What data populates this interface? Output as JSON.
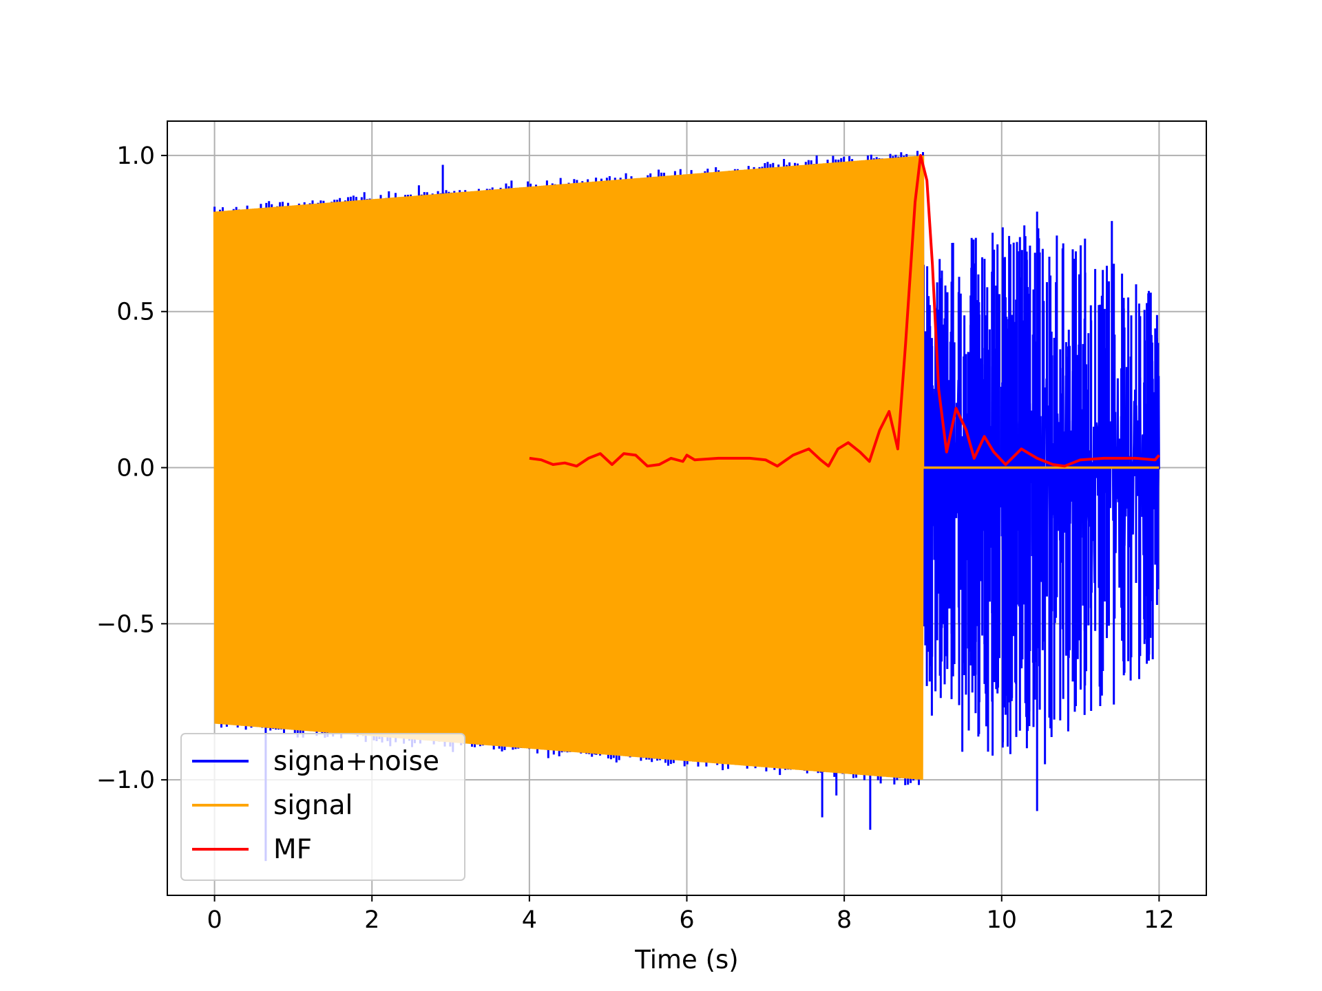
{
  "chart_data": {
    "type": "line",
    "title": "",
    "xlabel": "Time (s)",
    "ylabel": "",
    "xlim": [
      -0.6,
      12.6
    ],
    "ylim": [
      -1.37,
      1.11
    ],
    "x_ticks": [
      0,
      2,
      4,
      6,
      8,
      10,
      12
    ],
    "x_tick_labels": [
      "0",
      "2",
      "4",
      "6",
      "8",
      "10",
      "12"
    ],
    "y_ticks": [
      1.0,
      0.5,
      0.0,
      -0.5,
      -1.0
    ],
    "y_tick_labels": [
      "1.0",
      "0.5",
      "0.0",
      "−0.5",
      "−1.0"
    ],
    "grid": true,
    "legend_position": "lower-left",
    "series": [
      {
        "name": "signa+noise",
        "color": "#0000ff",
        "kind": "noisy-chirp",
        "signal_end": 9.0,
        "x_end": 12.0,
        "spike_points": [
          {
            "x": 0.65,
            "y": -1.26
          },
          {
            "x": 1.65,
            "y": 0.84
          },
          {
            "x": 2.3,
            "y": 0.88
          },
          {
            "x": 2.9,
            "y": 0.97
          },
          {
            "x": 4.85,
            "y": -0.92
          },
          {
            "x": 7.65,
            "y": 1.0
          },
          {
            "x": 7.72,
            "y": -1.12
          },
          {
            "x": 7.9,
            "y": -1.05
          },
          {
            "x": 8.3,
            "y": 1.0
          },
          {
            "x": 8.33,
            "y": -1.16
          },
          {
            "x": 9.5,
            "y": -0.91
          },
          {
            "x": 10.45,
            "y": 0.82
          },
          {
            "x": 10.45,
            "y": -1.1
          },
          {
            "x": 10.55,
            "y": -0.95
          },
          {
            "x": 11.4,
            "y": 0.79
          }
        ],
        "noise_envelope": [
          {
            "x": 9.0,
            "max": 0.72,
            "min": -0.78
          },
          {
            "x": 10.0,
            "max": 0.8,
            "min": -0.95
          },
          {
            "x": 11.0,
            "max": 0.75,
            "min": -0.85
          },
          {
            "x": 12.0,
            "max": 0.55,
            "min": -0.65
          }
        ]
      },
      {
        "name": "signal",
        "color": "#ffa500",
        "kind": "chirp",
        "envelope": [
          {
            "x": 0.0,
            "y": 0.82
          },
          {
            "x": 9.0,
            "y": 1.0
          }
        ],
        "signal_end": 9.0,
        "x_end": 12.0,
        "after_value": 0.0
      },
      {
        "name": "MF",
        "color": "#ff0000",
        "kind": "line",
        "points": [
          [
            4.0,
            0.03
          ],
          [
            4.15,
            0.025
          ],
          [
            4.3,
            0.01
          ],
          [
            4.45,
            0.015
          ],
          [
            4.6,
            0.005
          ],
          [
            4.75,
            0.03
          ],
          [
            4.9,
            0.045
          ],
          [
            5.05,
            0.01
          ],
          [
            5.2,
            0.045
          ],
          [
            5.35,
            0.04
          ],
          [
            5.5,
            0.005
          ],
          [
            5.65,
            0.01
          ],
          [
            5.8,
            0.03
          ],
          [
            5.95,
            0.02
          ],
          [
            6.0,
            0.04
          ],
          [
            6.1,
            0.025
          ],
          [
            6.4,
            0.03
          ],
          [
            6.8,
            0.03
          ],
          [
            7.0,
            0.025
          ],
          [
            7.15,
            0.005
          ],
          [
            7.35,
            0.04
          ],
          [
            7.55,
            0.06
          ],
          [
            7.7,
            0.025
          ],
          [
            7.8,
            0.005
          ],
          [
            7.92,
            0.06
          ],
          [
            8.05,
            0.08
          ],
          [
            8.2,
            0.05
          ],
          [
            8.32,
            0.02
          ],
          [
            8.45,
            0.12
          ],
          [
            8.57,
            0.18
          ],
          [
            8.68,
            0.06
          ],
          [
            8.78,
            0.4
          ],
          [
            8.9,
            0.85
          ],
          [
            8.97,
            1.0
          ],
          [
            9.05,
            0.92
          ],
          [
            9.12,
            0.65
          ],
          [
            9.2,
            0.25
          ],
          [
            9.3,
            0.05
          ],
          [
            9.42,
            0.19
          ],
          [
            9.55,
            0.12
          ],
          [
            9.65,
            0.03
          ],
          [
            9.78,
            0.1
          ],
          [
            9.9,
            0.05
          ],
          [
            10.05,
            0.01
          ],
          [
            10.25,
            0.06
          ],
          [
            10.45,
            0.03
          ],
          [
            10.65,
            0.01
          ],
          [
            10.8,
            0.005
          ],
          [
            11.0,
            0.025
          ],
          [
            11.3,
            0.03
          ],
          [
            11.7,
            0.03
          ],
          [
            11.95,
            0.025
          ],
          [
            12.0,
            0.04
          ]
        ]
      }
    ]
  }
}
